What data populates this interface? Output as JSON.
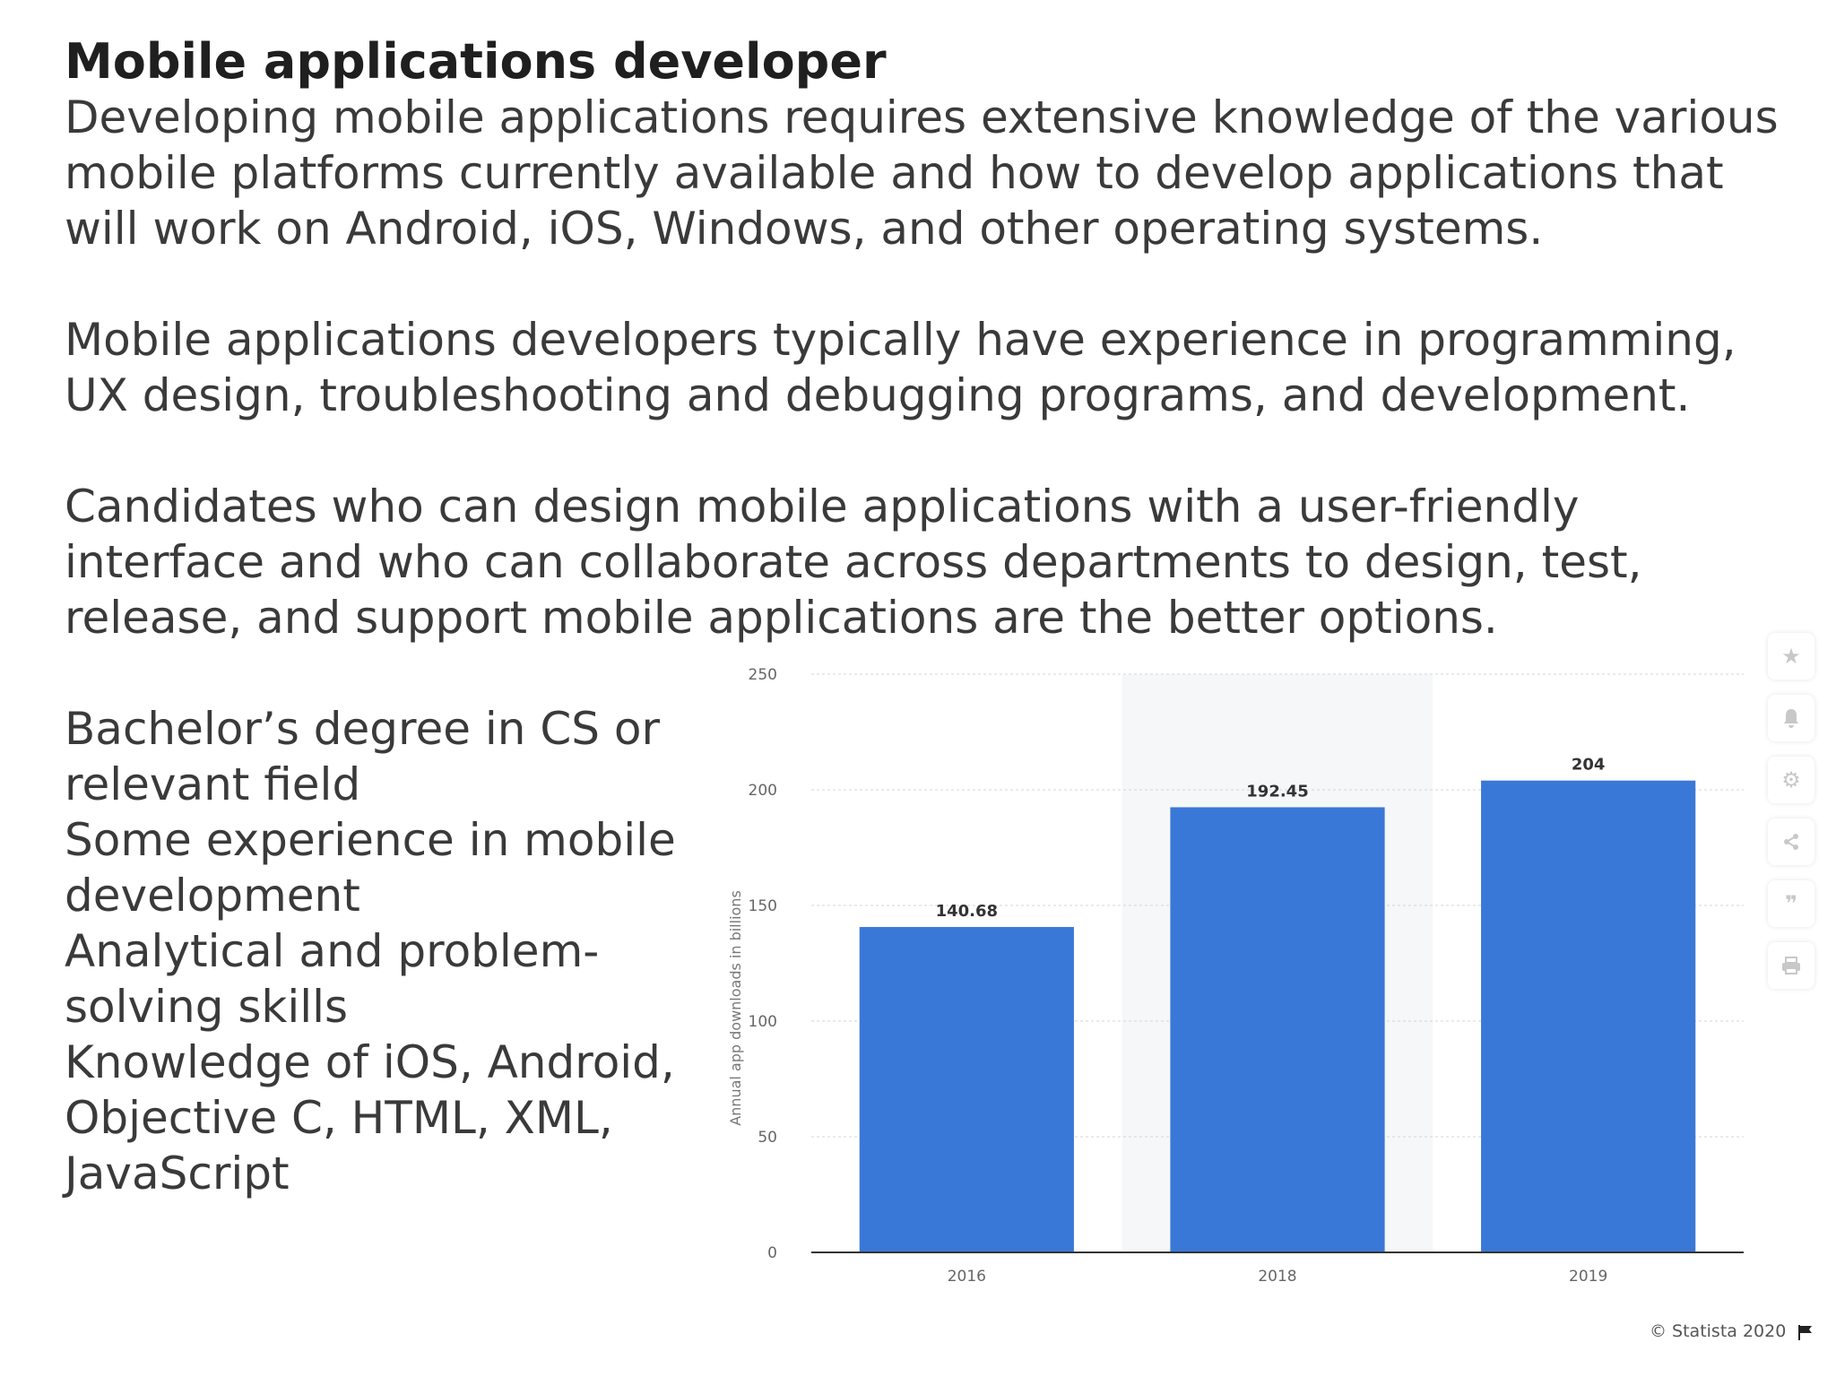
{
  "slide": {
    "title": "Mobile applications developer",
    "paragraphs": [
      [
        "Developing mobile applications requires extensive knowledge of the various",
        "mobile platforms currently available and how to develop applications that",
        "will work on Android, iOS, Windows, and other operating systems."
      ],
      [
        "Mobile applications developers typically have experience in programming,",
        "UX design, troubleshooting and debugging programs, and development."
      ],
      [
        "Candidates who can design mobile applications with a user-friendly",
        "interface and who can collaborate across departments to design, test,",
        "release, and support mobile applications are the better options."
      ]
    ],
    "requirements": [
      [
        "Bachelor’s degree in CS or",
        "relevant field"
      ],
      [
        "Some experience in mobile",
        "development"
      ],
      [
        "Analytical and problem-",
        "solving skills"
      ],
      [
        "Knowledge of iOS, Android,",
        "Objective C, HTML, XML,",
        "JavaScript"
      ]
    ]
  },
  "chart_data": {
    "type": "bar",
    "categories": [
      "2016",
      "2018",
      "2019"
    ],
    "values": [
      140.68,
      192.45,
      204
    ],
    "value_labels": [
      "140.68",
      "192.45",
      "204"
    ],
    "title": "",
    "xlabel": "",
    "ylabel": "Annual app downloads in billions",
    "ylim": [
      0,
      250
    ],
    "yticks": [
      0,
      50,
      100,
      150,
      200,
      250
    ],
    "grid": true,
    "highlighted_category": "2018",
    "colors": {
      "bar": "#3a78d8",
      "grid": "#d6d6d6",
      "axis": "#333333",
      "highlight_band": "#f5f7f8"
    }
  },
  "toolbar": {
    "icons": [
      "star-icon",
      "bell-icon",
      "gear-icon",
      "share-icon",
      "quote-icon",
      "print-icon"
    ]
  },
  "credit": {
    "text": "© Statista 2020"
  }
}
